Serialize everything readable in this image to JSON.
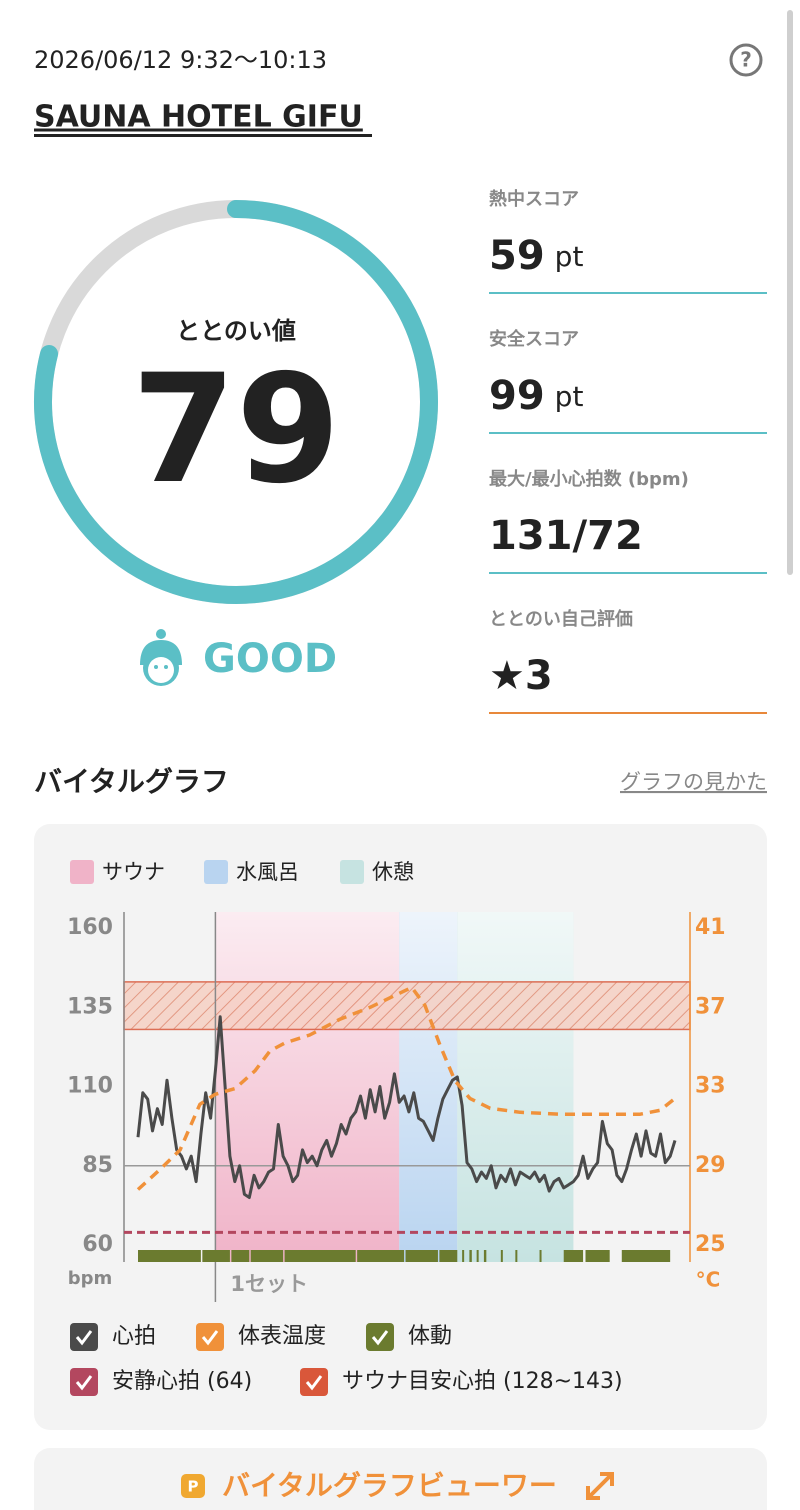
{
  "header": {
    "datetime": "2026/06/12 9:32〜10:13",
    "venue": "SAUNA HOTEL GIFU",
    "help": "?"
  },
  "score": {
    "label": "ととのい値",
    "value": 79,
    "lim": [
      0,
      100
    ],
    "rating": "GOOD"
  },
  "stats": [
    {
      "label": "熱中スコア",
      "value": 59,
      "unit": "pt"
    },
    {
      "label": "安全スコア",
      "value": 99,
      "unit": "pt"
    },
    {
      "label": "最大/最小心拍数 (bpm)",
      "value": "131/72"
    },
    {
      "label": "ととのい自己評価",
      "value": 3,
      "icon": "★"
    }
  ],
  "section": {
    "title": "バイタルグラフ",
    "link": "グラフの見かた"
  },
  "chart_data": {
    "type": "line",
    "zones": [
      {
        "name": "サウナ",
        "color": "#f0b3c8",
        "start": 16,
        "end": 54
      },
      {
        "name": "水風呂",
        "color": "#b9d4f0",
        "start": 54,
        "end": 66
      },
      {
        "name": "休憩",
        "color": "#c6e3e1",
        "start": 66,
        "end": 90
      }
    ],
    "series": [
      {
        "name": "心拍",
        "color": "#4a4a4a",
        "values": [
          94,
          108,
          106,
          96,
          103,
          98,
          112,
          100,
          90,
          88,
          84,
          88,
          80,
          95,
          108,
          100,
          115,
          132,
          110,
          88,
          80,
          85,
          76,
          75,
          82,
          78,
          80,
          83,
          84,
          98,
          88,
          85,
          80,
          82,
          90,
          86,
          88,
          85,
          90,
          93,
          88,
          92,
          98,
          95,
          100,
          102,
          107,
          100,
          109,
          102,
          110,
          100,
          105,
          114,
          105,
          107,
          102,
          108,
          100,
          99,
          96,
          93,
          100,
          106,
          109,
          112,
          113,
          104,
          86,
          84,
          80,
          83,
          81,
          85,
          78,
          82,
          80,
          84,
          79,
          83,
          82,
          81,
          83,
          80,
          82,
          77,
          80,
          81,
          78,
          79,
          80,
          82,
          88,
          81,
          84,
          86,
          99,
          92,
          90,
          82,
          80,
          84,
          90,
          95,
          88,
          96,
          89,
          88,
          95,
          86,
          88,
          93
        ]
      },
      {
        "name": "体表温度",
        "color": "#f0913a",
        "axis": "y2",
        "x": [
          0,
          4.5,
          8.7,
          12.8,
          15.9,
          20.1,
          24.2,
          27.3,
          30.4,
          35.5,
          41.8,
          48.0,
          53.1,
          56.6,
          59.3,
          62.4,
          65.5,
          68.6,
          72.8,
          79.0,
          87.3,
          95.5,
          103.8,
          107.9,
          111
        ],
        "values": [
          27.8,
          28.8,
          29.8,
          32.1,
          32.6,
          32.9,
          33.8,
          34.8,
          35.2,
          35.6,
          36.4,
          37.0,
          37.6,
          38.0,
          37.1,
          35.1,
          33.3,
          32.4,
          31.9,
          31.7,
          31.6,
          31.6,
          31.6,
          31.8,
          32.4
        ]
      }
    ],
    "movement": {
      "name": "体動",
      "color": "#6b7b2f",
      "segments": [
        [
          0,
          13
        ],
        [
          13.3,
          19
        ],
        [
          19.3,
          23
        ],
        [
          23.3,
          30
        ],
        [
          30.3,
          45
        ],
        [
          45.3,
          55
        ],
        [
          55.3,
          62
        ],
        [
          62.3,
          66
        ],
        [
          67,
          67.4
        ],
        [
          68.5,
          69
        ],
        [
          70,
          70.4
        ],
        [
          71.5,
          72
        ],
        [
          75,
          75.4
        ],
        [
          78,
          78.4
        ],
        [
          83,
          83.4
        ],
        [
          88,
          92
        ],
        [
          92.5,
          97.5
        ],
        [
          100,
          110
        ]
      ]
    },
    "resting_hr": {
      "name": "安静心拍 (64)",
      "value": 64,
      "color": "#b3475f"
    },
    "target_hr": {
      "name": "サウナ目安心拍 (128~143)",
      "range": [
        128,
        143
      ],
      "color": "#d9573a"
    },
    "reference_line": 85,
    "set": {
      "label": "1セット",
      "x": 16
    },
    "xlim": [
      0,
      111
    ],
    "ylim": [
      60,
      160
    ],
    "yticks": [
      60,
      85,
      110,
      135,
      160
    ],
    "y2lim": [
      25,
      41
    ],
    "y2ticks": [
      25,
      29,
      33,
      37,
      41
    ],
    "ylabel": "bpm",
    "y2label": "°C"
  },
  "viewer": {
    "icon": "P",
    "label": "バイタルグラフビューワー"
  }
}
